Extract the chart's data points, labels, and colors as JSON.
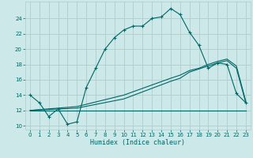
{
  "xlabel": "Humidex (Indice chaleur)",
  "bg_color": "#cce8e8",
  "grid_color": "#b0cccc",
  "line_color": "#006666",
  "xlim": [
    -0.5,
    23.5
  ],
  "ylim": [
    9.5,
    26.2
  ],
  "yticks": [
    10,
    12,
    14,
    16,
    18,
    20,
    22,
    24
  ],
  "xticks": [
    0,
    1,
    2,
    3,
    4,
    5,
    6,
    7,
    8,
    9,
    10,
    11,
    12,
    13,
    14,
    15,
    16,
    17,
    18,
    19,
    20,
    21,
    22,
    23
  ],
  "s1_x": [
    0,
    1,
    2,
    3,
    4,
    5,
    6,
    7,
    8,
    9,
    10,
    11,
    12,
    13,
    14,
    15,
    16,
    17,
    18,
    19,
    20,
    21,
    22,
    23
  ],
  "s1_y": [
    14.0,
    13.0,
    11.2,
    12.2,
    10.2,
    10.5,
    15.0,
    17.5,
    20.0,
    21.5,
    22.5,
    23.0,
    23.0,
    24.0,
    24.2,
    25.3,
    24.5,
    22.2,
    20.5,
    17.5,
    18.2,
    18.0,
    14.2,
    13.0
  ],
  "s2_x": [
    0,
    1,
    2,
    3,
    4,
    5,
    6,
    7,
    8,
    9,
    10,
    11,
    12,
    13,
    14,
    15,
    16,
    17,
    18,
    19,
    20,
    21,
    22,
    23
  ],
  "s2_y": [
    12.0,
    12.0,
    12.0,
    12.0,
    12.0,
    12.0,
    12.0,
    12.0,
    12.0,
    12.0,
    12.0,
    12.0,
    12.0,
    12.0,
    12.0,
    12.0,
    12.0,
    12.0,
    12.0,
    12.0,
    12.0,
    12.0,
    12.0,
    12.0
  ],
  "s3_x": [
    0,
    5,
    10,
    15,
    16,
    17,
    18,
    19,
    20,
    21,
    22,
    23
  ],
  "s3_y": [
    12.0,
    12.3,
    13.5,
    15.8,
    16.2,
    17.0,
    17.4,
    17.8,
    18.2,
    18.5,
    17.5,
    13.0
  ],
  "s4_x": [
    0,
    5,
    10,
    15,
    16,
    17,
    18,
    19,
    20,
    21,
    22,
    23
  ],
  "s4_y": [
    12.0,
    12.5,
    14.0,
    16.2,
    16.6,
    17.2,
    17.5,
    18.0,
    18.4,
    18.7,
    17.8,
    13.2
  ]
}
